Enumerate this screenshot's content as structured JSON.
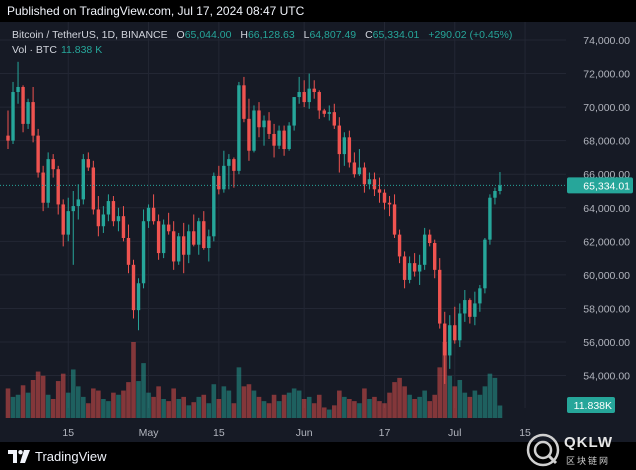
{
  "header": {
    "published": "Published on TradingView.com, Jul 17, 2024 08:47 UTC"
  },
  "legend": {
    "title": "Bitcoin / TetherUS, 1D, BINANCE",
    "open_label": "O",
    "open": "65,044.00",
    "high_label": "H",
    "high": "66,128.63",
    "low_label": "L",
    "low": "64,807.49",
    "close_label": "C",
    "close": "65,334.01",
    "change": "+290.02 (+0.45%)",
    "vol_label": "Vol · BTC",
    "vol_value": "11.838 K"
  },
  "price_badge": "65,334.01",
  "volume_badge": "11.838K",
  "footer": {
    "brand": "TradingView"
  },
  "watermark": {
    "text": "QKLW",
    "sub": "区块链网"
  },
  "colors": {
    "up": "#26a69a",
    "down": "#ef5350",
    "background": "#161a25",
    "grid": "#232734"
  },
  "chart_data": {
    "type": "candlestick",
    "symbol": "Bitcoin / TetherUS",
    "interval": "1D",
    "exchange": "BINANCE",
    "y_ticks": [
      "74,000.00",
      "72,000.00",
      "70,000.00",
      "68,000.00",
      "66,000.00",
      "64,000.00",
      "62,000.00",
      "60,000.00",
      "58,000.00",
      "56,000.00",
      "54,000.00"
    ],
    "y_tick_values": [
      74000,
      72000,
      70000,
      68000,
      66000,
      64000,
      62000,
      60000,
      58000,
      56000,
      54000
    ],
    "x_ticks": [
      {
        "label": "15",
        "index": 12
      },
      {
        "label": "May",
        "index": 28
      },
      {
        "label": "15",
        "index": 42
      },
      {
        "label": "Jun",
        "index": 59
      },
      {
        "label": "17",
        "index": 75
      },
      {
        "label": "Jul",
        "index": 89
      },
      {
        "label": "15",
        "index": 103
      }
    ],
    "last_price": 65334.01,
    "candles": [
      [
        68300,
        69800,
        67500,
        68000
      ],
      [
        68000,
        71500,
        67800,
        70900
      ],
      [
        70900,
        72700,
        70200,
        71200
      ],
      [
        71200,
        71300,
        68500,
        69000
      ],
      [
        69000,
        70500,
        68700,
        70300
      ],
      [
        70300,
        71200,
        67900,
        68300
      ],
      [
        68300,
        68700,
        65800,
        66100
      ],
      [
        66100,
        66500,
        63800,
        64300
      ],
      [
        64300,
        67300,
        64000,
        66900
      ],
      [
        66900,
        67200,
        65800,
        66300
      ],
      [
        66300,
        66500,
        63600,
        64200
      ],
      [
        64200,
        64500,
        61700,
        62400
      ],
      [
        62400,
        64600,
        62000,
        63800
      ],
      [
        63800,
        65000,
        60600,
        64100
      ],
      [
        64100,
        65400,
        63300,
        64500
      ],
      [
        64500,
        67200,
        64200,
        66900
      ],
      [
        66900,
        67300,
        66200,
        66400
      ],
      [
        66400,
        66800,
        63600,
        63900
      ],
      [
        63900,
        64700,
        62300,
        62900
      ],
      [
        62900,
        64100,
        62500,
        63600
      ],
      [
        63600,
        64800,
        63200,
        64400
      ],
      [
        64400,
        64700,
        62900,
        63200
      ],
      [
        63200,
        64000,
        62600,
        63500
      ],
      [
        63500,
        64100,
        62000,
        62200
      ],
      [
        62200,
        63000,
        60100,
        60600
      ],
      [
        60600,
        60900,
        57400,
        57900
      ],
      [
        57900,
        59800,
        56700,
        59500
      ],
      [
        59500,
        63900,
        59200,
        63200
      ],
      [
        63200,
        64200,
        62800,
        64000
      ],
      [
        64000,
        64800,
        63000,
        63200
      ],
      [
        63200,
        63600,
        60900,
        61300
      ],
      [
        61300,
        63300,
        61000,
        63000
      ],
      [
        63000,
        63700,
        62400,
        62600
      ],
      [
        62600,
        63200,
        60300,
        60800
      ],
      [
        60800,
        62500,
        60600,
        62300
      ],
      [
        62300,
        63100,
        60100,
        61200
      ],
      [
        61200,
        63000,
        60700,
        62600
      ],
      [
        62600,
        63600,
        61700,
        61800
      ],
      [
        61800,
        63400,
        61200,
        63200
      ],
      [
        63200,
        63800,
        61500,
        61600
      ],
      [
        61600,
        62700,
        60800,
        62300
      ],
      [
        62300,
        66100,
        62000,
        65900
      ],
      [
        65900,
        66500,
        64800,
        65100
      ],
      [
        65100,
        67400,
        64900,
        66500
      ],
      [
        66500,
        67200,
        65100,
        66900
      ],
      [
        66900,
        67000,
        65200,
        66200
      ],
      [
        66200,
        71500,
        66000,
        71300
      ],
      [
        71300,
        71800,
        69100,
        69300
      ],
      [
        69300,
        70500,
        66800,
        67400
      ],
      [
        67400,
        70100,
        67300,
        69800
      ],
      [
        69800,
        70300,
        68200,
        68800
      ],
      [
        68800,
        69500,
        67700,
        69200
      ],
      [
        69200,
        69700,
        68100,
        68400
      ],
      [
        68400,
        69000,
        67000,
        67700
      ],
      [
        67700,
        68900,
        67500,
        68600
      ],
      [
        68600,
        68900,
        67100,
        67500
      ],
      [
        67500,
        69100,
        67400,
        68900
      ],
      [
        68900,
        70500,
        68600,
        70600
      ],
      [
        70600,
        71800,
        70200,
        70900
      ],
      [
        70900,
        71600,
        70000,
        70300
      ],
      [
        70300,
        72000,
        69900,
        71100
      ],
      [
        71100,
        71600,
        70500,
        70900
      ],
      [
        70900,
        71000,
        69300,
        69800
      ],
      [
        69800,
        69900,
        69400,
        69600
      ],
      [
        69600,
        70100,
        69200,
        69700
      ],
      [
        69700,
        70200,
        68700,
        68900
      ],
      [
        68900,
        69400,
        66100,
        67200
      ],
      [
        67200,
        68500,
        66500,
        68200
      ],
      [
        68200,
        68600,
        66400,
        66700
      ],
      [
        66700,
        67300,
        65800,
        66000
      ],
      [
        66000,
        67500,
        65900,
        66400
      ],
      [
        66400,
        66700,
        64900,
        65400
      ],
      [
        65400,
        66100,
        65100,
        65700
      ],
      [
        65700,
        66100,
        64700,
        65100
      ],
      [
        65100,
        65800,
        64300,
        64900
      ],
      [
        64900,
        65100,
        63900,
        64300
      ],
      [
        64300,
        64700,
        63500,
        64200
      ],
      [
        64200,
        64800,
        62200,
        62400
      ],
      [
        62400,
        62700,
        60700,
        61100
      ],
      [
        61100,
        61400,
        59200,
        59700
      ],
      [
        59700,
        61100,
        59500,
        60700
      ],
      [
        60700,
        61300,
        59900,
        60200
      ],
      [
        60200,
        61200,
        59400,
        60600
      ],
      [
        60600,
        62800,
        60300,
        62400
      ],
      [
        62400,
        62700,
        61700,
        61900
      ],
      [
        61900,
        62100,
        59800,
        60300
      ],
      [
        60300,
        61000,
        56800,
        57100
      ],
      [
        57100,
        57800,
        53500,
        55200
      ],
      [
        55200,
        57600,
        54400,
        57000
      ],
      [
        57000,
        58100,
        55900,
        56100
      ],
      [
        56100,
        58300,
        55700,
        57700
      ],
      [
        57700,
        59100,
        57200,
        58500
      ],
      [
        58500,
        58600,
        57100,
        57500
      ],
      [
        57500,
        59000,
        57000,
        58300
      ],
      [
        58300,
        59400,
        57800,
        59200
      ],
      [
        59200,
        62200,
        58900,
        62100
      ],
      [
        62100,
        64800,
        61800,
        64600
      ],
      [
        64600,
        65200,
        64200,
        65000
      ],
      [
        65000,
        66130,
        64800,
        65334
      ]
    ],
    "volumes_k": [
      28,
      20,
      22,
      31,
      24,
      36,
      44,
      40,
      22,
      18,
      35,
      42,
      24,
      46,
      30,
      20,
      14,
      28,
      26,
      18,
      16,
      24,
      22,
      26,
      34,
      72,
      35,
      52,
      24,
      20,
      30,
      18,
      16,
      28,
      18,
      20,
      12,
      15,
      20,
      22,
      14,
      32,
      18,
      30,
      26,
      14,
      48,
      30,
      32,
      26,
      20,
      16,
      14,
      22,
      16,
      22,
      24,
      28,
      26,
      18,
      20,
      14,
      22,
      10,
      8,
      12,
      26,
      20,
      18,
      16,
      14,
      28,
      18,
      20,
      16,
      14,
      24,
      34,
      38,
      30,
      22,
      18,
      20,
      26,
      16,
      22,
      48,
      72,
      40,
      30,
      36,
      24,
      20,
      26,
      22,
      30,
      42,
      38,
      11.838
    ]
  }
}
